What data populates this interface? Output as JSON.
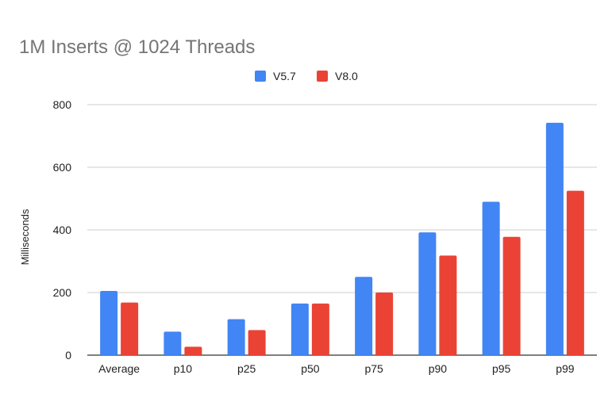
{
  "chart_data": {
    "type": "bar",
    "title": "1M Inserts @ 1024 Threads",
    "xlabel": "",
    "ylabel": "Milliseconds",
    "ylim": [
      0,
      800
    ],
    "yticks": [
      0,
      200,
      400,
      600,
      800
    ],
    "grid": true,
    "legend_position": "top",
    "categories": [
      "Average",
      "p10",
      "p25",
      "p50",
      "p75",
      "p90",
      "p95",
      "p99"
    ],
    "series": [
      {
        "name": "V5.7",
        "color": "#4285f4",
        "values": [
          205,
          75,
          115,
          165,
          250,
          392,
          490,
          742
        ]
      },
      {
        "name": "V8.0",
        "color": "#ea4335",
        "values": [
          168,
          27,
          80,
          165,
          200,
          318,
          378,
          525
        ]
      }
    ]
  }
}
